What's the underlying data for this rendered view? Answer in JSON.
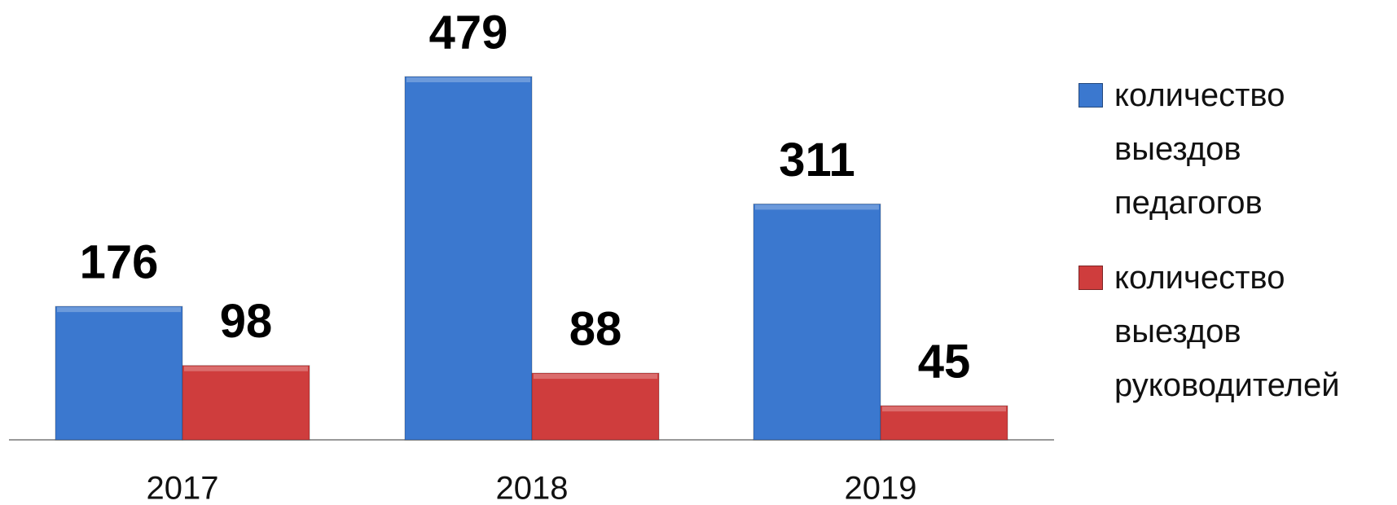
{
  "chart_data": {
    "type": "bar",
    "categories": [
      "2017",
      "2018",
      "2019"
    ],
    "series": [
      {
        "name": "количество выездов педагогов",
        "color": "#3b78cf",
        "values": [
          176,
          479,
          311
        ]
      },
      {
        "name": "количество выездов руководителей",
        "color": "#cf3d3d",
        "values": [
          98,
          88,
          45
        ]
      }
    ],
    "legend": "right"
  }
}
